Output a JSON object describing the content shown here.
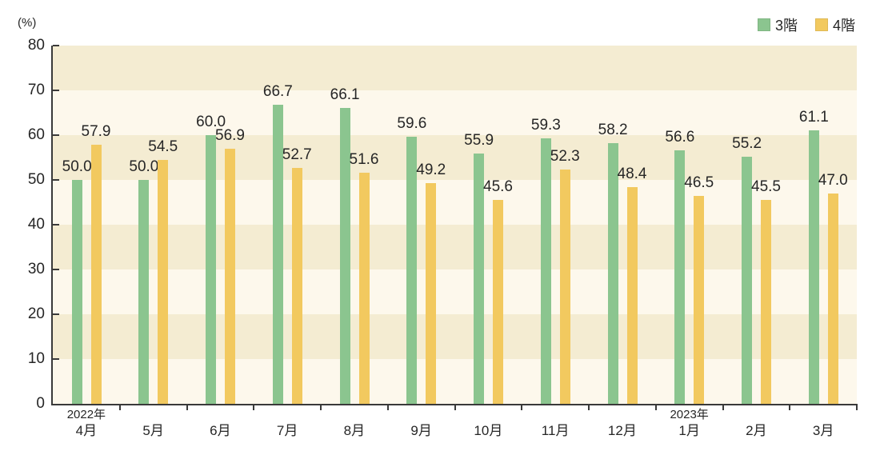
{
  "chart_data": {
    "type": "bar",
    "title": "",
    "unit_label": "(%)",
    "categories": [
      "4月",
      "5月",
      "6月",
      "7月",
      "8月",
      "9月",
      "10月",
      "11月",
      "12月",
      "1月",
      "2月",
      "3月"
    ],
    "category_year_markers": [
      {
        "index": 0,
        "label": "2022年"
      },
      {
        "index": 9,
        "label": "2023年"
      }
    ],
    "series": [
      {
        "name": "3階",
        "color": "#8bc58f",
        "values": [
          50.0,
          50.0,
          60.0,
          66.7,
          66.1,
          59.6,
          55.9,
          59.3,
          58.2,
          56.6,
          55.2,
          61.1
        ]
      },
      {
        "name": "4階",
        "color": "#f2c95f",
        "values": [
          57.9,
          54.5,
          56.9,
          52.7,
          51.6,
          49.2,
          45.6,
          52.3,
          48.4,
          46.5,
          45.5,
          47.0
        ]
      }
    ],
    "xlabel": "",
    "ylabel": "",
    "ylim": [
      0,
      80
    ],
    "yticks": [
      0,
      10,
      20,
      30,
      40,
      50,
      60,
      70,
      80
    ],
    "value_labels": true,
    "value_label_decimals": 1,
    "legend_position": "top-right",
    "grid": "banded-horizontal",
    "plot_band_colors": [
      "#f4ecd2",
      "#fdf8ec"
    ],
    "axis_color": "#3a3a3a",
    "text_color": "#262626"
  }
}
